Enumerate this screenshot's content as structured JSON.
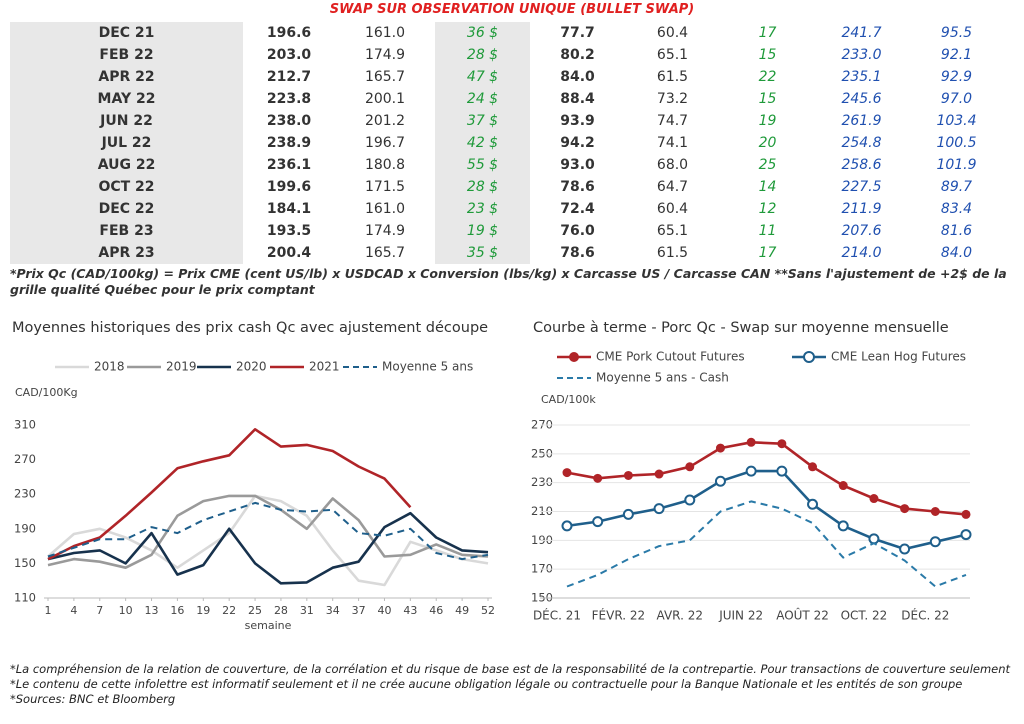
{
  "table": {
    "title": "SWAP SUR OBSERVATION UNIQUE (BULLET SWAP)",
    "rows": [
      [
        "DEC 21",
        "196.6",
        "161.0",
        "36 $",
        "77.7",
        "60.4",
        "17",
        "241.7",
        "95.5"
      ],
      [
        "FEB 22",
        "203.0",
        "174.9",
        "28 $",
        "80.2",
        "65.1",
        "15",
        "233.0",
        "92.1"
      ],
      [
        "APR 22",
        "212.7",
        "165.7",
        "47 $",
        "84.0",
        "61.5",
        "22",
        "235.1",
        "92.9"
      ],
      [
        "MAY 22",
        "223.8",
        "200.1",
        "24 $",
        "88.4",
        "73.2",
        "15",
        "245.6",
        "97.0"
      ],
      [
        "JUN 22",
        "238.0",
        "201.2",
        "37 $",
        "93.9",
        "74.7",
        "19",
        "261.9",
        "103.4"
      ],
      [
        "JUL 22",
        "238.9",
        "196.7",
        "42 $",
        "94.2",
        "74.1",
        "20",
        "254.8",
        "100.5"
      ],
      [
        "AUG 22",
        "236.1",
        "180.8",
        "55 $",
        "93.0",
        "68.0",
        "25",
        "258.6",
        "101.9"
      ],
      [
        "OCT 22",
        "199.6",
        "171.5",
        "28 $",
        "78.6",
        "64.7",
        "14",
        "227.5",
        "89.7"
      ],
      [
        "DEC 22",
        "184.1",
        "161.0",
        "23 $",
        "72.4",
        "60.4",
        "12",
        "211.9",
        "83.4"
      ],
      [
        "FEB 23",
        "193.5",
        "174.9",
        "19 $",
        "76.0",
        "65.1",
        "11",
        "207.6",
        "81.6"
      ],
      [
        "APR 23",
        "200.4",
        "165.7",
        "35 $",
        "78.6",
        "61.5",
        "17",
        "214.0",
        "84.0"
      ]
    ],
    "note": "*Prix Qc (CAD/100kg) = Prix CME (cent US/lb) x USDCAD x Conversion (lbs/kg) x Carcasse US / Carcasse CAN **Sans l'ajustement de +2$ de la grille qualité Québec pour le prix comptant"
  },
  "chart_data": [
    {
      "type": "line",
      "title": "Moyennes historiques des prix cash Qc avec ajustement découpe",
      "y_label": "CAD/100Kg",
      "x_label": "semaine",
      "x": [
        1,
        4,
        7,
        10,
        13,
        16,
        19,
        22,
        25,
        28,
        31,
        34,
        37,
        40,
        43,
        46,
        49,
        52
      ],
      "xlim": [
        1,
        52
      ],
      "xticks": [
        1,
        4,
        7,
        10,
        13,
        16,
        19,
        22,
        25,
        28,
        31,
        34,
        37,
        40,
        43,
        46,
        49,
        52
      ],
      "ylim": [
        110,
        310
      ],
      "yticks": [
        110,
        150,
        190,
        230,
        270,
        310
      ],
      "grid": false,
      "series": [
        {
          "name": "2018",
          "color": "#d9d9d9",
          "values": [
            158,
            184,
            190,
            180,
            165,
            145,
            165,
            185,
            228,
            222,
            205,
            165,
            130,
            125,
            175,
            165,
            155,
            150
          ]
        },
        {
          "name": "2019",
          "color": "#9a9a9a",
          "values": [
            148,
            155,
            152,
            145,
            160,
            205,
            222,
            228,
            228,
            212,
            190,
            225,
            200,
            158,
            160,
            172,
            160,
            158
          ]
        },
        {
          "name": "2020",
          "color": "#17324d",
          "values": [
            155,
            162,
            165,
            150,
            185,
            137,
            148,
            190,
            150,
            127,
            128,
            145,
            152,
            192,
            208,
            180,
            165,
            163
          ]
        },
        {
          "name": "2021",
          "color": "#b02428",
          "values": [
            155,
            170,
            180,
            205,
            232,
            260,
            268,
            275,
            305,
            285,
            287,
            280,
            262,
            248,
            215,
            null,
            null,
            null
          ]
        },
        {
          "name": "Moyenne 5 ans",
          "color": "#1f5f8b",
          "dashed": true,
          "values": [
            158,
            168,
            178,
            178,
            192,
            185,
            200,
            210,
            220,
            212,
            210,
            212,
            185,
            182,
            190,
            162,
            155,
            160
          ]
        }
      ]
    },
    {
      "type": "line",
      "title": "Courbe à terme - Porc Qc - Swap sur moyenne mensuelle",
      "y_label": "CAD/100k",
      "categories": [
        "DÉC. 21",
        null,
        "FÉVR. 22",
        null,
        "AVR. 22",
        null,
        "JUIN 22",
        null,
        "AOÛT 22",
        null,
        "OCT. 22",
        null,
        "DÉC. 22",
        null
      ],
      "ylim": [
        150,
        270
      ],
      "yticks": [
        150,
        170,
        190,
        210,
        230,
        250,
        270
      ],
      "grid": true,
      "series": [
        {
          "name": "CME Pork Cutout Futures",
          "color": "#b02428",
          "marker": "filled",
          "values": [
            237,
            233,
            235,
            236,
            241,
            254,
            258,
            257,
            241,
            228,
            219,
            212,
            210,
            208
          ]
        },
        {
          "name": "CME Lean Hog Futures",
          "color": "#1f5f8b",
          "marker": "open",
          "values": [
            200,
            203,
            208,
            212,
            218,
            231,
            238,
            238,
            215,
            200,
            191,
            184,
            189,
            194
          ]
        },
        {
          "name": "Moyenne 5 ans - Cash",
          "color": "#2a7aa8",
          "dashed": true,
          "values": [
            158,
            166,
            177,
            186,
            190,
            210,
            217,
            212,
            202,
            178,
            188,
            176,
            158,
            166
          ]
        }
      ]
    }
  ],
  "footnotes": [
    "*La compréhension de la relation de couverture, de la corrélation et du risque de base est de la responsabilité de la contrepartie. Pour transactions de couverture seulement",
    "*Le contenu de cette infolettre est informatif seulement et il ne crée aucune obligation légale ou contractuelle pour la Banque Nationale et les entités de son groupe",
    "*Sources: BNC et Bloomberg"
  ]
}
